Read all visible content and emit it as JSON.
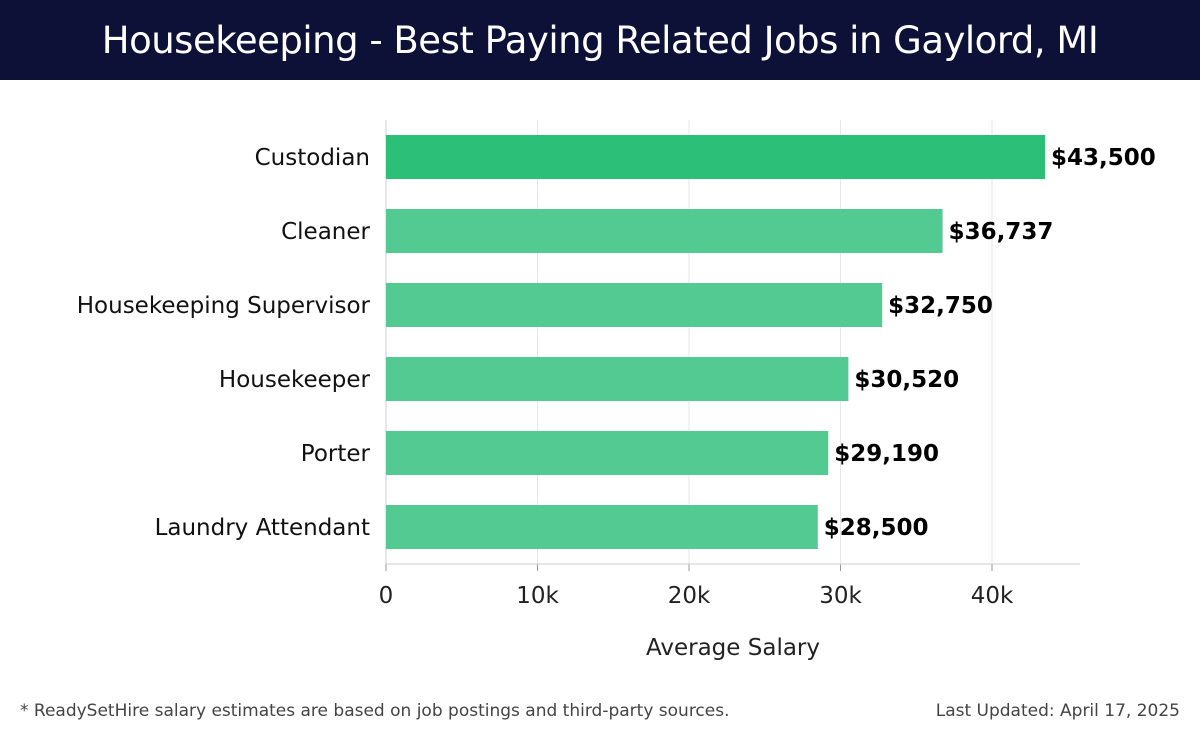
{
  "header": {
    "title": "Housekeeping - Best Paying Related Jobs in Gaylord, MI"
  },
  "chart_data": {
    "type": "bar",
    "orientation": "horizontal",
    "categories": [
      "Custodian",
      "Cleaner",
      "Housekeeping Supervisor",
      "Housekeeper",
      "Porter",
      "Laundry Attendant"
    ],
    "values": [
      43500,
      36737,
      32750,
      30520,
      29190,
      28500
    ],
    "data_labels": [
      "$43,500",
      "$36,737",
      "$32,750",
      "$30,520",
      "$29,190",
      "$28,500"
    ],
    "xlabel": "Average Salary",
    "ylabel": "",
    "xlim": [
      0,
      46000
    ],
    "x_ticks": [
      0,
      10000,
      20000,
      30000,
      40000
    ],
    "x_tick_labels": [
      "0",
      "10k",
      "20k",
      "30k",
      "40k"
    ],
    "grid": true,
    "colors": {
      "top_bar": "#2bbf77",
      "bar": "#52ca92"
    }
  },
  "footer": {
    "note": "* ReadySetHire salary estimates are based on job postings and third-party sources.",
    "updated": "Last Updated: April 17, 2025"
  }
}
